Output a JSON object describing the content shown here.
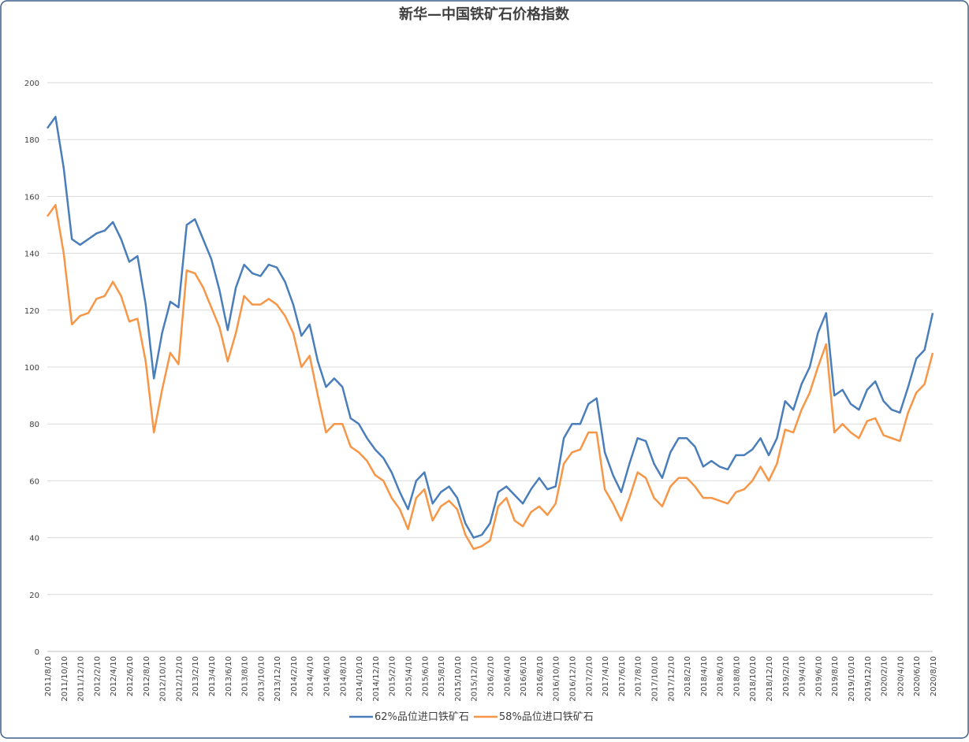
{
  "chart_data": {
    "type": "line",
    "title": "新华—中国铁矿石价格指数",
    "categories": [
      "2011/8/10",
      null,
      "2011/10/10",
      null,
      "2011/12/10",
      null,
      "2012/2/10",
      null,
      "2012/4/10",
      null,
      "2012/6/10",
      null,
      "2012/8/10",
      null,
      "2012/10/10",
      null,
      "2012/12/10",
      null,
      "2013/2/10",
      null,
      "2013/4/10",
      null,
      "2013/6/10",
      null,
      "2013/8/10",
      null,
      "2013/10/10",
      null,
      "2013/12/10",
      null,
      "2014/2/10",
      null,
      "2014/4/10",
      null,
      "2014/6/10",
      null,
      "2014/8/10",
      null,
      "2014/10/10",
      null,
      "2014/12/10",
      null,
      "2015/2/10",
      null,
      "2015/4/10",
      null,
      "2015/6/10",
      null,
      "2015/8/10",
      null,
      "2015/10/10",
      null,
      "2015/12/10",
      null,
      "2016/2/10",
      null,
      "2016/4/10",
      null,
      "2016/6/10",
      null,
      "2016/8/10",
      null,
      "2016/10/10",
      null,
      "2016/12/10",
      null,
      "2017/2/10",
      null,
      "2017/4/10",
      null,
      "2017/6/10",
      null,
      "2017/8/10",
      null,
      "2017/10/10",
      null,
      "2017/12/10",
      null,
      "2018/2/10",
      null,
      "2018/4/10",
      null,
      "2018/6/10",
      null,
      "2018/8/10",
      null,
      "2018/10/10",
      null,
      "2018/12/10",
      null,
      "2019/2/10",
      null,
      "2019/4/10",
      null,
      "2019/6/10",
      null,
      "2019/8/10",
      null,
      "2019/10/10",
      null,
      "2019/12/10",
      null,
      "2020/2/10",
      null,
      "2020/4/10",
      null,
      "2020/6/10",
      null,
      "2020/8/10"
    ],
    "series": [
      {
        "name": "62%品位进口铁矿石",
        "color": "#4a7ebb",
        "values": [
          184,
          188,
          170,
          145,
          143,
          145,
          147,
          148,
          151,
          145,
          137,
          139,
          122,
          96,
          112,
          123,
          121,
          150,
          152,
          145,
          138,
          127,
          113,
          128,
          136,
          133,
          132,
          136,
          135,
          130,
          122,
          111,
          115,
          102,
          93,
          96,
          93,
          82,
          80,
          75,
          71,
          68,
          63,
          56,
          50,
          60,
          63,
          52,
          56,
          58,
          54,
          45,
          40,
          41,
          45,
          56,
          58,
          55,
          52,
          57,
          61,
          57,
          58,
          75,
          80,
          80,
          87,
          89,
          70,
          62,
          56,
          66,
          75,
          74,
          66,
          61,
          70,
          75,
          75,
          72,
          65,
          67,
          65,
          64,
          69,
          69,
          71,
          75,
          69,
          75,
          88,
          85,
          94,
          100,
          112,
          119,
          90,
          92,
          87,
          85,
          92,
          95,
          88,
          85,
          84,
          93,
          103,
          106,
          119
        ]
      },
      {
        "name": "58%品位进口铁矿石",
        "color": "#f79646",
        "values": [
          153,
          157,
          140,
          115,
          118,
          119,
          124,
          125,
          130,
          125,
          116,
          117,
          102,
          77,
          92,
          105,
          101,
          134,
          133,
          128,
          121,
          114,
          102,
          112,
          125,
          122,
          122,
          124,
          122,
          118,
          112,
          100,
          104,
          90,
          77,
          80,
          80,
          72,
          70,
          67,
          62,
          60,
          54,
          50,
          43,
          54,
          57,
          46,
          51,
          53,
          50,
          41,
          36,
          37,
          39,
          51,
          54,
          46,
          44,
          49,
          51,
          48,
          52,
          66,
          70,
          71,
          77,
          77,
          57,
          52,
          46,
          54,
          63,
          61,
          54,
          51,
          58,
          61,
          61,
          58,
          54,
          54,
          53,
          52,
          56,
          57,
          60,
          65,
          60,
          66,
          78,
          77,
          85,
          91,
          100,
          108,
          77,
          80,
          77,
          75,
          81,
          82,
          76,
          75,
          74,
          84,
          91,
          94,
          105
        ]
      }
    ],
    "ylim": [
      0,
      200
    ],
    "yticks": [
      0,
      20,
      40,
      60,
      80,
      100,
      120,
      140,
      160,
      180,
      200
    ],
    "grid": true,
    "legend": "bottom"
  }
}
